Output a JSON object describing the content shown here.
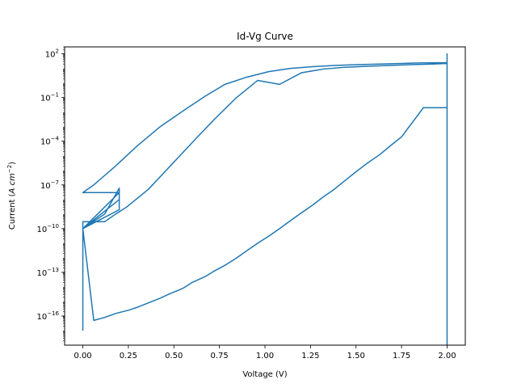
{
  "chart_data": {
    "type": "line",
    "title": "Id-Vg Curve",
    "xlabel": "Voltage (V)",
    "ylabel": {
      "prefix": "Current (",
      "italic_a": "A",
      "space": " ",
      "italic_cm": "cm",
      "exponent": "−2",
      "suffix": ")"
    },
    "xlim": [
      -0.1,
      2.1
    ],
    "ylim": [
      1e-18,
      300
    ],
    "yscale": "log",
    "grid": false,
    "xticks": [
      0.0,
      0.25,
      0.5,
      0.75,
      1.0,
      1.25,
      1.5,
      1.75,
      2.0
    ],
    "xtick_labels": [
      "0.00",
      "0.25",
      "0.50",
      "0.75",
      "1.00",
      "1.25",
      "1.50",
      "1.75",
      "2.00"
    ],
    "yticks": [
      1e-16,
      1e-13,
      1e-10,
      1e-07,
      0.0001,
      0.1,
      100
    ],
    "ytick_labels": [
      {
        "base": "10",
        "exp": "−16"
      },
      {
        "base": "10",
        "exp": "−13"
      },
      {
        "base": "10",
        "exp": "−10"
      },
      {
        "base": "10",
        "exp": "−7"
      },
      {
        "base": "10",
        "exp": "−4"
      },
      {
        "base": "10",
        "exp": "−1"
      },
      {
        "base": "10",
        "exp": "2"
      }
    ],
    "line_color": "#1f77b4",
    "series": [
      {
        "x": [
          0.0,
          0.0,
          0.0,
          0.0,
          0.0,
          0.0,
          0.0,
          0.0,
          0.06,
          0.12,
          0.18,
          0.25,
          0.3,
          0.36,
          0.42,
          0.48,
          0.55,
          0.6,
          0.67,
          0.72,
          0.78,
          0.84,
          0.9,
          0.96,
          1.02,
          1.08,
          1.14,
          1.2,
          1.26,
          1.32,
          1.38,
          1.44,
          1.5,
          1.56,
          1.63,
          1.69,
          1.75,
          1.81,
          1.87,
          1.93,
          2.0,
          2.0,
          2.0,
          2.0,
          2.0,
          1.87,
          1.75,
          1.63,
          1.5,
          1.38,
          1.26,
          1.14,
          1.02,
          0.9,
          0.78,
          0.67,
          0.55,
          0.42,
          0.3,
          0.18,
          0.06,
          0.0,
          0.0,
          0.0,
          0.0,
          0.2,
          0.2,
          0.0,
          0.2,
          0.2,
          0.12,
          0.0,
          0.2,
          0.2,
          0.0,
          0.0,
          0.06,
          0.12,
          0.18,
          0.24,
          0.36,
          0.48,
          0.6,
          0.72,
          0.84,
          0.96,
          1.08,
          1.2,
          1.32,
          1.44,
          1.56,
          1.68,
          1.8,
          1.92,
          2.0,
          2.0,
          2.0
        ],
        "y": [
          1e-17,
          3e-17,
          1e-16,
          1e-15,
          1e-12,
          1e-10,
          3e-10,
          1e-10,
          5e-17,
          8e-17,
          1.5e-16,
          2.5e-16,
          4e-16,
          8e-16,
          1.6e-15,
          3.5e-15,
          8e-15,
          2e-14,
          5e-14,
          1.2e-13,
          3e-13,
          9e-13,
          3e-12,
          1e-11,
          3e-11,
          1e-10,
          3.5e-10,
          1.2e-09,
          4e-09,
          1.5e-08,
          5e-08,
          2e-07,
          8e-07,
          3e-06,
          1.2e-05,
          5e-05,
          0.0002,
          0.002,
          0.02,
          0.02,
          0.02,
          1e-18,
          1e-18,
          50,
          25,
          24,
          22,
          20,
          18,
          16,
          13,
          10,
          6,
          2.5,
          0.8,
          0.12,
          0.012,
          0.0009,
          5e-05,
          2e-06,
          1e-07,
          3e-08,
          3e-08,
          3e-08,
          3e-08,
          3e-08,
          1e-08,
          1e-10,
          3e-08,
          6e-08,
          1e-09,
          1e-10,
          3e-08,
          2e-09,
          1e-10,
          3e-10,
          3e-10,
          3e-10,
          1e-09,
          3e-09,
          5e-08,
          2e-06,
          8e-05,
          0.003,
          0.09,
          1.5,
          0.8,
          5,
          9,
          12,
          14,
          16,
          18,
          20,
          22,
          100,
          1e-18
        ]
      }
    ]
  }
}
